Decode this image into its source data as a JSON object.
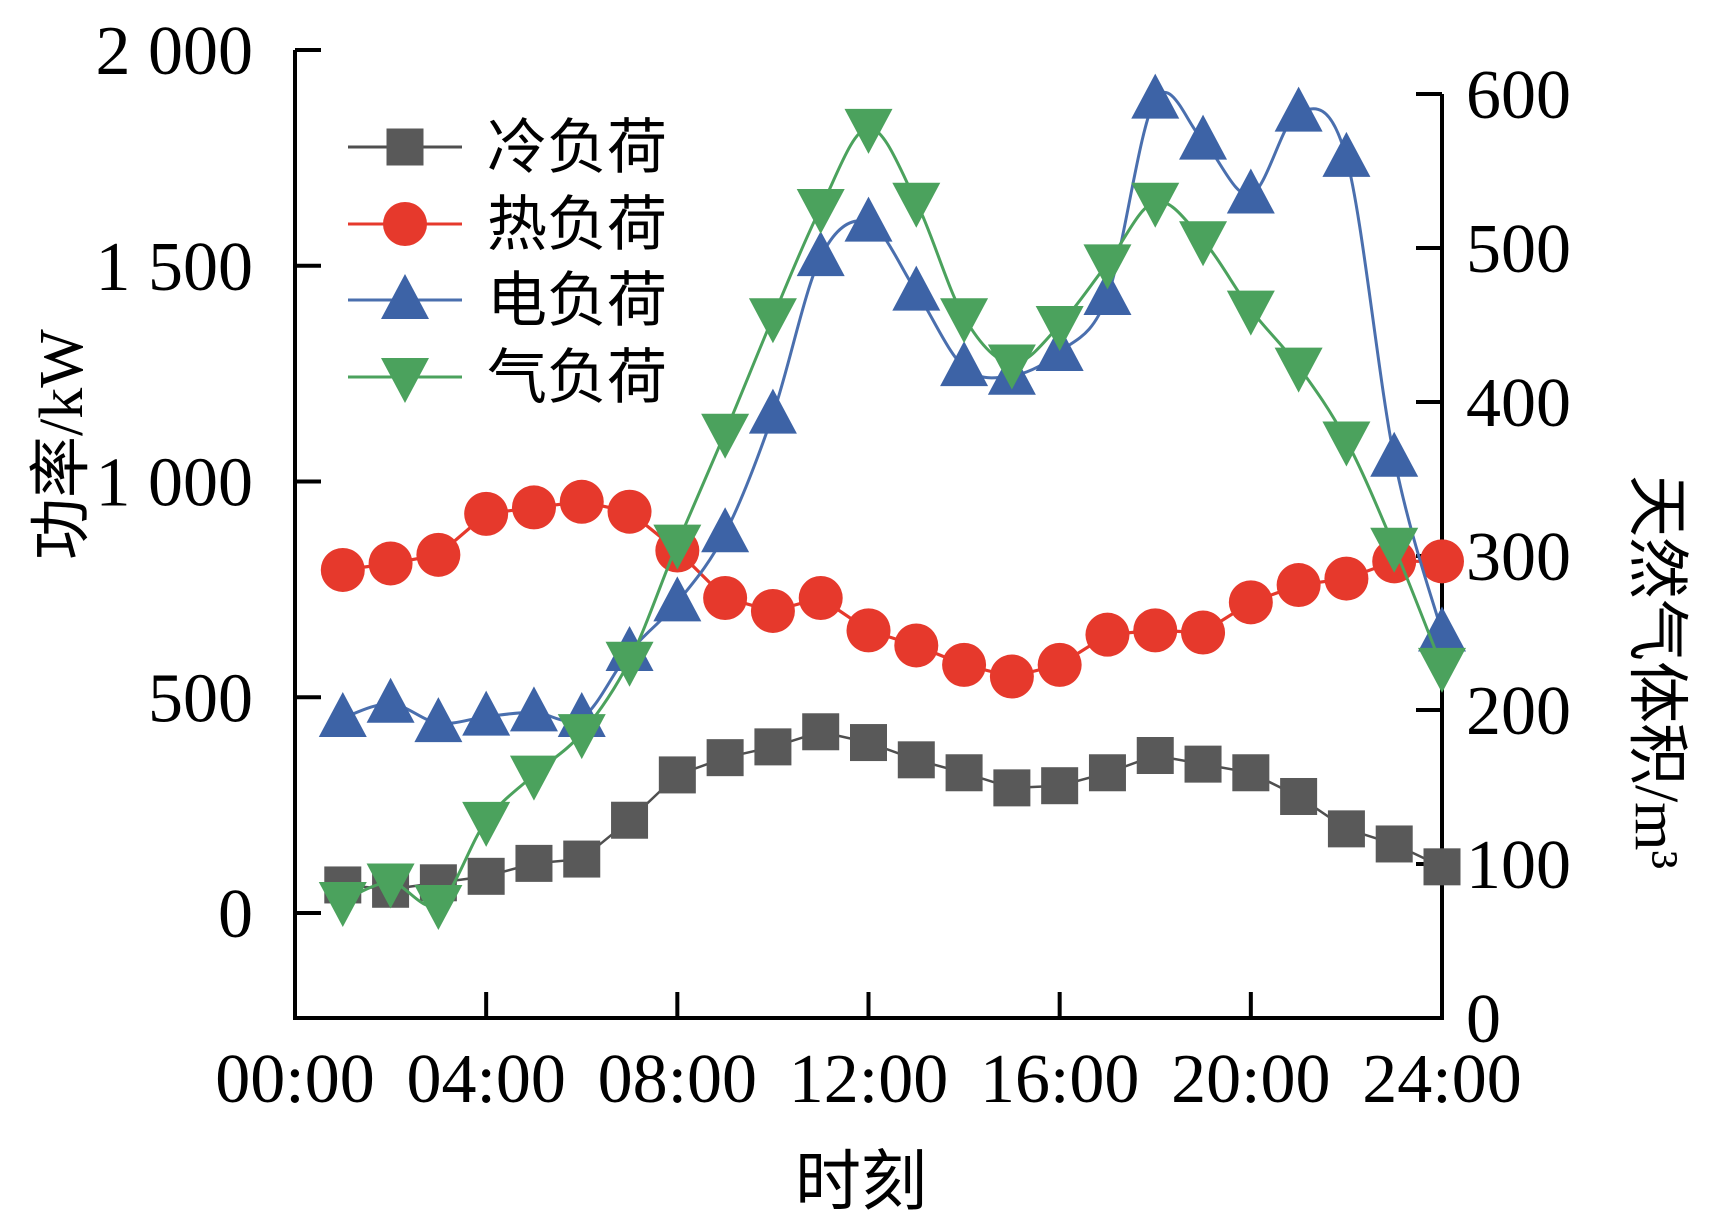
{
  "page": {
    "background": "#ffffff"
  },
  "chart_data": {
    "type": "line",
    "title": "",
    "xlabel": "时刻",
    "ylabel_left": "功率/kW",
    "ylabel_right": "天然气体积/m³",
    "x": [
      1,
      2,
      3,
      4,
      5,
      6,
      7,
      8,
      9,
      10,
      11,
      12,
      13,
      14,
      15,
      16,
      17,
      18,
      19,
      20,
      21,
      22,
      23,
      24
    ],
    "x_ticks": {
      "values": [
        0,
        4,
        8,
        12,
        16,
        20,
        24
      ],
      "labels": [
        "00:00",
        "04:00",
        "08:00",
        "12:00",
        "16:00",
        "20:00",
        "24:00"
      ]
    },
    "left_axis": {
      "label": "功率/kW",
      "units": "kW",
      "tick_values": [
        0,
        500,
        1000,
        1500,
        2000
      ],
      "tick_labels": [
        "0",
        "500",
        "1 000",
        "1 500",
        "2 000"
      ],
      "range_shown": [
        0,
        2000
      ]
    },
    "right_axis": {
      "label": "天然气体积/m³",
      "units": "m³",
      "tick_values": [
        0,
        100,
        200,
        300,
        400,
        500,
        600
      ],
      "tick_labels": [
        "0",
        "100",
        "200",
        "300",
        "400",
        "500",
        "600"
      ],
      "range_shown": [
        0,
        600
      ]
    },
    "legend_position": "top-left",
    "series": [
      {
        "id": "cooling-load",
        "name": "冷负荷",
        "axis": "left",
        "marker": "square",
        "color": "#595959",
        "line_color": "#4f4f4f",
        "line_width": 2.5,
        "smooth": false,
        "values": [
          65,
          55,
          70,
          85,
          115,
          125,
          215,
          320,
          360,
          385,
          420,
          395,
          355,
          325,
          290,
          295,
          325,
          365,
          345,
          325,
          270,
          195,
          160,
          107
        ]
      },
      {
        "id": "heat-load",
        "name": "热负荷",
        "axis": "left",
        "marker": "circle",
        "color": "#e6392c",
        "line_color": "#e6392c",
        "line_width": 3.2,
        "smooth": false,
        "values": [
          795,
          810,
          830,
          925,
          940,
          953,
          930,
          840,
          730,
          700,
          730,
          655,
          620,
          575,
          548,
          575,
          645,
          655,
          650,
          720,
          760,
          775,
          815,
          815
        ]
      },
      {
        "id": "electric-load",
        "name": "电负荷",
        "axis": "left",
        "marker": "triangle-up",
        "color": "#3d63a6",
        "line_color": "#4a6fae",
        "line_width": 3,
        "smooth": true,
        "values": [
          452,
          485,
          440,
          455,
          465,
          452,
          605,
          720,
          880,
          1155,
          1520,
          1600,
          1440,
          1265,
          1245,
          1300,
          1430,
          1885,
          1790,
          1665,
          1855,
          1750,
          1055,
          650
        ]
      },
      {
        "id": "gas-load",
        "name": "气负荷",
        "axis": "right",
        "marker": "triangle-down",
        "color": "#4ba25d",
        "line_color": "#4ba25d",
        "line_width": 3,
        "smooth": true,
        "values": [
          76,
          88,
          74,
          128,
          158,
          185,
          232,
          308,
          380,
          455,
          526,
          578,
          530,
          455,
          425,
          450,
          490,
          530,
          505,
          460,
          423,
          375,
          306,
          228
        ]
      }
    ]
  }
}
